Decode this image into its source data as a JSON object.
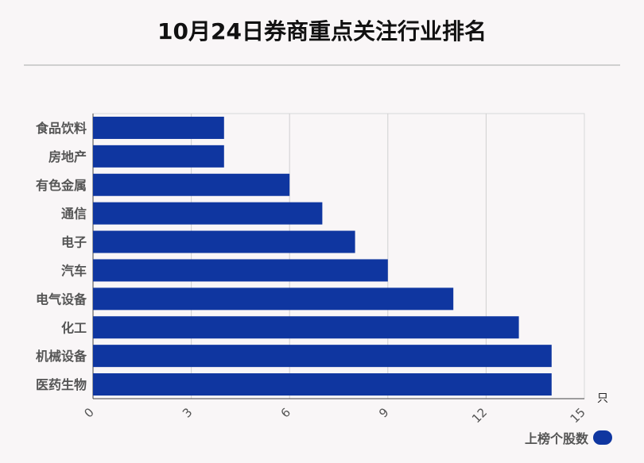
{
  "title": "10月24日券商重点关注行业排名",
  "chart_data": {
    "type": "bar",
    "orientation": "horizontal",
    "categories": [
      "食品饮料",
      "房地产",
      "有色金属",
      "通信",
      "电子",
      "汽车",
      "电气设备",
      "化工",
      "机械设备",
      "医药生物"
    ],
    "series": [
      {
        "name": "上榜个股数",
        "values": [
          4,
          4,
          6,
          7,
          8,
          9,
          11,
          13,
          14,
          14
        ]
      }
    ],
    "xlim": [
      0,
      15
    ],
    "xticks": [
      "0",
      "3",
      "6",
      "9",
      "12",
      "15"
    ],
    "xunit": "只",
    "grid": true,
    "legend_position": "bottom-right",
    "bar_color": "#0f36a0"
  },
  "legend": {
    "label": "上榜个股数"
  }
}
